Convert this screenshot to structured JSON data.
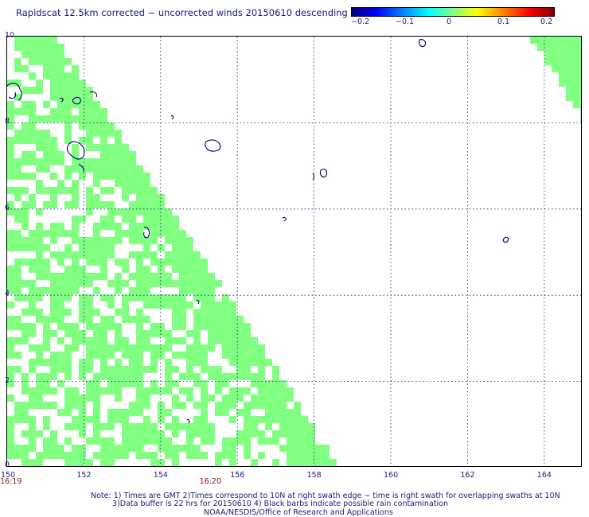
{
  "title": "Rapidscat 12.5km corrected − uncorrected winds 20150610 descending",
  "colorbar": {
    "ticks": [
      {
        "label": "−0.2",
        "value": -0.2
      },
      {
        "label": "−0.1",
        "value": -0.1
      },
      {
        "label": "0",
        "value": 0
      },
      {
        "label": "0.1",
        "value": 0.1
      },
      {
        "label": "0.2",
        "value": 0.2
      }
    ]
  },
  "chart_data": {
    "type": "heatmap",
    "xlim": [
      150,
      165
    ],
    "ylim": [
      0,
      10
    ],
    "x_ticks": [
      {
        "label": "150",
        "value": 150
      },
      {
        "label": "152",
        "value": 152
      },
      {
        "label": "154",
        "value": 154
      },
      {
        "label": "156",
        "value": 156
      },
      {
        "label": "158",
        "value": 158
      },
      {
        "label": "160",
        "value": 160
      },
      {
        "label": "162",
        "value": 162
      },
      {
        "label": "164",
        "value": 164
      }
    ],
    "y_ticks": [
      {
        "label": "10",
        "value": 10
      },
      {
        "label": "8",
        "value": 8
      },
      {
        "label": "6",
        "value": 6
      },
      {
        "label": "4",
        "value": 4
      },
      {
        "label": "2",
        "value": 2
      },
      {
        "label": "0",
        "value": 0
      }
    ],
    "grid": true,
    "swath_fill_color": "#80ff80",
    "fill_value": 0,
    "time_labels": [
      {
        "label": "16:19",
        "lon": 150
      },
      {
        "label": "16:20",
        "lon": 155.2
      }
    ]
  },
  "notes": [
    "Note: 1) Times are GMT 2)Times correspond to 10N at right swath edge − time is right swath for overlapping swaths at 10N",
    "3)Data buffer is 22 hrs for 20150610 4) Black barbs indicate possible rain contamination",
    "NOAA/NESDIS/Office of Research and Applications"
  ]
}
